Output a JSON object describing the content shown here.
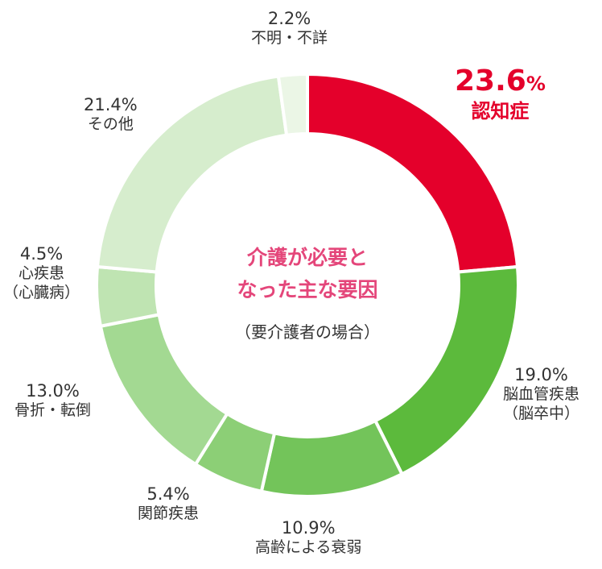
{
  "chart_data": {
    "type": "pie",
    "title_lines": [
      "介護が必要と",
      "なった主な要因"
    ],
    "subtitle": "（要介護者の場合）",
    "slices": [
      {
        "label": "認知症",
        "value": 23.6,
        "value_text": "23.6",
        "unit": "%",
        "color": "#e4002b",
        "highlight": true
      },
      {
        "label": "脳血管疾患",
        "label2": "（脳卒中）",
        "value": 19.0,
        "value_text": "19.0%",
        "color": "#5cba3c"
      },
      {
        "label": "高齢による衰弱",
        "value": 10.9,
        "value_text": "10.9%",
        "color": "#73c45a"
      },
      {
        "label": "関節疾患",
        "value": 5.4,
        "value_text": "5.4%",
        "color": "#8ccf76"
      },
      {
        "label": "骨折・転倒",
        "value": 13.0,
        "value_text": "13.0%",
        "color": "#a3d992"
      },
      {
        "label": "心疾患",
        "label2": "（心臓病）",
        "value": 4.5,
        "value_text": "4.5%",
        "color": "#bfe4b2"
      },
      {
        "label": "その他",
        "value": 21.4,
        "value_text": "21.4%",
        "color": "#d6edcd"
      },
      {
        "label": "不明・不詳",
        "value": 2.2,
        "value_text": "2.2%",
        "color": "#ebf6e6"
      }
    ]
  }
}
